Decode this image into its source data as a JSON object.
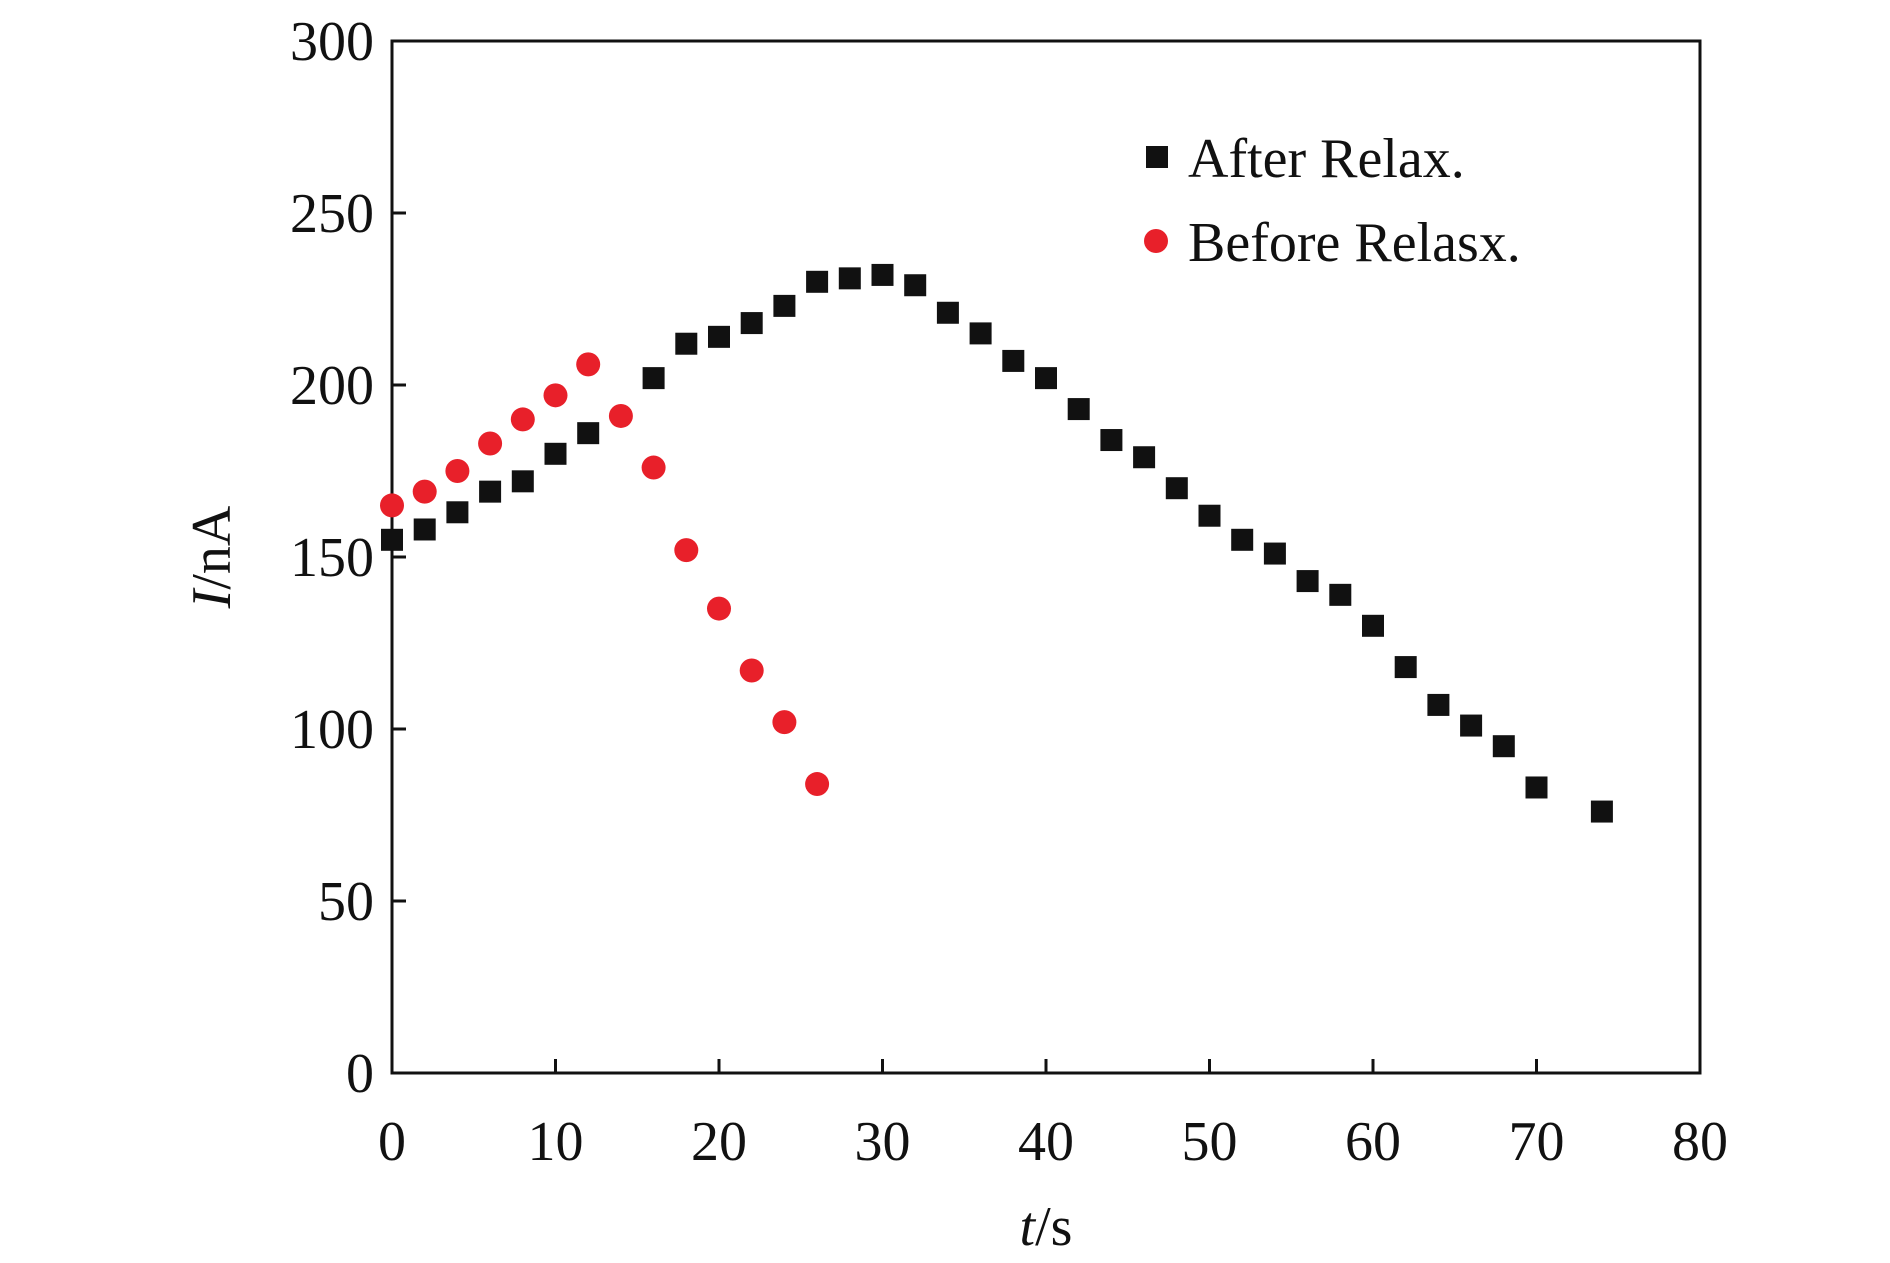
{
  "chart_data": {
    "type": "scatter",
    "title": "",
    "xlabel_var": "t",
    "xlabel_unit": "/s",
    "ylabel_var": "I",
    "ylabel_unit": "/nA",
    "xlim": [
      0,
      80
    ],
    "ylim": [
      0,
      300
    ],
    "x_ticks": [
      "0",
      "10",
      "20",
      "30",
      "40",
      "50",
      "60",
      "70",
      "80"
    ],
    "y_ticks": [
      "0",
      "50",
      "100",
      "150",
      "200",
      "250",
      "300"
    ],
    "grid": false,
    "legend_position": "top-right",
    "series": [
      {
        "name": "After Relax.",
        "marker": "square",
        "color": "#111111",
        "x": [
          0,
          2,
          4,
          6,
          8,
          10,
          12,
          16,
          18,
          20,
          22,
          24,
          26,
          28,
          30,
          32,
          34,
          36,
          38,
          40,
          42,
          44,
          46,
          48,
          50,
          52,
          54,
          56,
          58,
          60,
          62,
          64,
          66,
          68,
          70,
          74
        ],
        "y": [
          155,
          158,
          163,
          169,
          172,
          180,
          186,
          202,
          212,
          214,
          218,
          223,
          230,
          231,
          232,
          229,
          221,
          215,
          207,
          202,
          193,
          184,
          179,
          170,
          162,
          155,
          151,
          143,
          139,
          130,
          118,
          107,
          101,
          95,
          83,
          76
        ]
      },
      {
        "name": "Before Relasx.",
        "marker": "circle",
        "color": "#e8202a",
        "x": [
          0,
          2,
          4,
          6,
          8,
          10,
          12,
          14,
          16,
          18,
          20,
          22,
          24,
          26
        ],
        "y": [
          165,
          169,
          175,
          183,
          190,
          197,
          206,
          191,
          176,
          152,
          135,
          117,
          102,
          84
        ]
      }
    ]
  }
}
